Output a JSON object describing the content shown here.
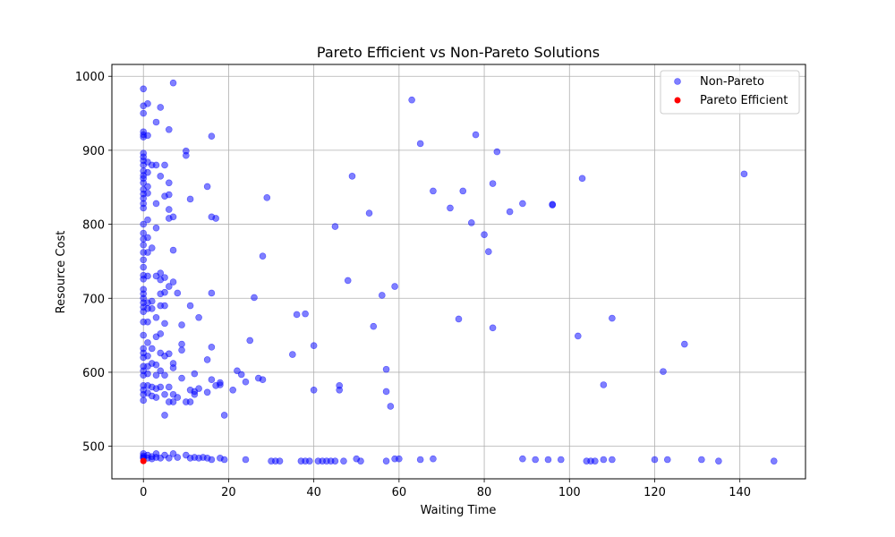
{
  "chart_data": {
    "type": "scatter",
    "title": "Pareto Efficient vs Non-Pareto Solutions",
    "xlabel": "Waiting Time",
    "ylabel": "Resource Cost",
    "xlim": [
      -7.4,
      155.4
    ],
    "ylim": [
      456,
      1016
    ],
    "xticks": [
      0,
      20,
      40,
      60,
      80,
      100,
      120,
      140
    ],
    "yticks": [
      500,
      600,
      700,
      800,
      900,
      1000
    ],
    "grid": true,
    "legend_position": "top-right",
    "series": [
      {
        "name": "Non-Pareto",
        "color": "#0000ff",
        "points": [
          [
            0,
            983
          ],
          [
            0,
            960
          ],
          [
            0,
            950
          ],
          [
            0,
            925
          ],
          [
            0,
            921
          ],
          [
            0,
            918
          ],
          [
            0,
            896
          ],
          [
            0,
            891
          ],
          [
            0,
            886
          ],
          [
            0,
            880
          ],
          [
            0,
            872
          ],
          [
            0,
            866
          ],
          [
            0,
            862
          ],
          [
            0,
            856
          ],
          [
            0,
            847
          ],
          [
            0,
            841
          ],
          [
            0,
            835
          ],
          [
            0,
            828
          ],
          [
            0,
            822
          ],
          [
            0,
            800
          ],
          [
            0,
            788
          ],
          [
            0,
            780
          ],
          [
            0,
            772
          ],
          [
            0,
            762
          ],
          [
            0,
            752
          ],
          [
            0,
            742
          ],
          [
            0,
            731
          ],
          [
            0,
            726
          ],
          [
            0,
            712
          ],
          [
            0,
            706
          ],
          [
            0,
            700
          ],
          [
            0,
            694
          ],
          [
            0,
            688
          ],
          [
            0,
            682
          ],
          [
            0,
            668
          ],
          [
            0,
            650
          ],
          [
            0,
            632
          ],
          [
            0,
            626
          ],
          [
            0,
            620
          ],
          [
            0,
            608
          ],
          [
            0,
            602
          ],
          [
            0,
            596
          ],
          [
            0,
            582
          ],
          [
            0,
            576
          ],
          [
            0,
            570
          ],
          [
            0,
            562
          ],
          [
            1,
            963
          ],
          [
            1,
            920
          ],
          [
            1,
            884
          ],
          [
            1,
            870
          ],
          [
            1,
            851
          ],
          [
            1,
            842
          ],
          [
            1,
            806
          ],
          [
            1,
            782
          ],
          [
            1,
            762
          ],
          [
            1,
            730
          ],
          [
            1,
            694
          ],
          [
            1,
            686
          ],
          [
            1,
            668
          ],
          [
            1,
            640
          ],
          [
            1,
            622
          ],
          [
            1,
            608
          ],
          [
            1,
            598
          ],
          [
            1,
            582
          ],
          [
            1,
            572
          ],
          [
            2,
            880
          ],
          [
            2,
            768
          ],
          [
            2,
            696
          ],
          [
            2,
            686
          ],
          [
            2,
            632
          ],
          [
            2,
            612
          ],
          [
            2,
            580
          ],
          [
            2,
            568
          ],
          [
            3,
            938
          ],
          [
            3,
            880
          ],
          [
            3,
            828
          ],
          [
            3,
            795
          ],
          [
            3,
            730
          ],
          [
            3,
            674
          ],
          [
            3,
            648
          ],
          [
            3,
            610
          ],
          [
            3,
            596
          ],
          [
            3,
            578
          ],
          [
            3,
            566
          ],
          [
            4,
            958
          ],
          [
            4,
            865
          ],
          [
            4,
            734
          ],
          [
            4,
            725
          ],
          [
            4,
            706
          ],
          [
            4,
            690
          ],
          [
            4,
            652
          ],
          [
            4,
            626
          ],
          [
            4,
            602
          ],
          [
            4,
            580
          ],
          [
            5,
            880
          ],
          [
            5,
            838
          ],
          [
            5,
            728
          ],
          [
            5,
            708
          ],
          [
            5,
            690
          ],
          [
            5,
            666
          ],
          [
            5,
            622
          ],
          [
            5,
            596
          ],
          [
            5,
            570
          ],
          [
            5,
            542
          ],
          [
            6,
            928
          ],
          [
            6,
            856
          ],
          [
            6,
            840
          ],
          [
            6,
            820
          ],
          [
            6,
            808
          ],
          [
            6,
            716
          ],
          [
            6,
            625
          ],
          [
            6,
            580
          ],
          [
            6,
            560
          ],
          [
            7,
            991
          ],
          [
            7,
            810
          ],
          [
            7,
            765
          ],
          [
            7,
            722
          ],
          [
            7,
            612
          ],
          [
            7,
            606
          ],
          [
            7,
            570
          ],
          [
            7,
            560
          ],
          [
            8,
            707
          ],
          [
            8,
            566
          ],
          [
            9,
            664
          ],
          [
            9,
            638
          ],
          [
            9,
            630
          ],
          [
            9,
            592
          ],
          [
            10,
            899
          ],
          [
            10,
            893
          ],
          [
            10,
            560
          ],
          [
            11,
            834
          ],
          [
            11,
            690
          ],
          [
            11,
            576
          ],
          [
            11,
            560
          ],
          [
            12,
            598
          ],
          [
            12,
            574
          ],
          [
            12,
            570
          ],
          [
            13,
            674
          ],
          [
            13,
            578
          ],
          [
            15,
            851
          ],
          [
            15,
            617
          ],
          [
            15,
            573
          ],
          [
            16,
            919
          ],
          [
            16,
            810
          ],
          [
            16,
            707
          ],
          [
            16,
            634
          ],
          [
            16,
            590
          ],
          [
            17,
            808
          ],
          [
            17,
            582
          ],
          [
            18,
            586
          ],
          [
            18,
            583
          ],
          [
            19,
            542
          ],
          [
            21,
            576
          ],
          [
            22,
            602
          ],
          [
            23,
            597
          ],
          [
            24,
            587
          ],
          [
            25,
            643
          ],
          [
            26,
            701
          ],
          [
            27,
            592
          ],
          [
            28,
            757
          ],
          [
            28,
            590
          ],
          [
            29,
            836
          ],
          [
            35,
            624
          ],
          [
            36,
            678
          ],
          [
            38,
            679
          ],
          [
            40,
            636
          ],
          [
            40,
            576
          ],
          [
            45,
            797
          ],
          [
            46,
            582
          ],
          [
            46,
            576
          ],
          [
            48,
            724
          ],
          [
            49,
            865
          ],
          [
            53,
            815
          ],
          [
            54,
            662
          ],
          [
            56,
            704
          ],
          [
            57,
            604
          ],
          [
            57,
            574
          ],
          [
            58,
            554
          ],
          [
            59,
            716
          ],
          [
            63,
            968
          ],
          [
            65,
            909
          ],
          [
            68,
            845
          ],
          [
            72,
            822
          ],
          [
            74,
            672
          ],
          [
            75,
            845
          ],
          [
            77,
            802
          ],
          [
            78,
            921
          ],
          [
            80,
            786
          ],
          [
            81,
            763
          ],
          [
            82,
            855
          ],
          [
            82,
            660
          ],
          [
            83,
            898
          ],
          [
            86,
            817
          ],
          [
            89,
            828
          ],
          [
            96,
            827
          ],
          [
            96,
            826
          ],
          [
            102,
            649
          ],
          [
            103,
            862
          ],
          [
            108,
            583
          ],
          [
            110,
            673
          ],
          [
            122,
            601
          ],
          [
            127,
            638
          ],
          [
            141,
            868
          ],
          [
            0,
            490
          ],
          [
            0,
            487
          ],
          [
            0,
            485
          ],
          [
            0,
            484
          ],
          [
            1,
            488
          ],
          [
            1,
            484
          ],
          [
            2,
            486
          ],
          [
            2,
            483
          ],
          [
            3,
            490
          ],
          [
            3,
            485
          ],
          [
            4,
            484
          ],
          [
            5,
            488
          ],
          [
            6,
            484
          ],
          [
            7,
            490
          ],
          [
            8,
            485
          ],
          [
            10,
            488
          ],
          [
            11,
            484
          ],
          [
            12,
            485
          ],
          [
            13,
            484
          ],
          [
            14,
            485
          ],
          [
            15,
            484
          ],
          [
            16,
            482
          ],
          [
            18,
            484
          ],
          [
            19,
            482
          ],
          [
            24,
            482
          ],
          [
            30,
            480
          ],
          [
            31,
            480
          ],
          [
            32,
            480
          ],
          [
            37,
            480
          ],
          [
            38,
            480
          ],
          [
            39,
            480
          ],
          [
            41,
            480
          ],
          [
            42,
            480
          ],
          [
            43,
            480
          ],
          [
            44,
            480
          ],
          [
            45,
            480
          ],
          [
            47,
            480
          ],
          [
            50,
            483
          ],
          [
            51,
            480
          ],
          [
            57,
            480
          ],
          [
            59,
            483
          ],
          [
            60,
            483
          ],
          [
            65,
            482
          ],
          [
            68,
            483
          ],
          [
            89,
            483
          ],
          [
            92,
            482
          ],
          [
            95,
            482
          ],
          [
            98,
            482
          ],
          [
            104,
            480
          ],
          [
            105,
            480
          ],
          [
            106,
            480
          ],
          [
            108,
            482
          ],
          [
            110,
            482
          ],
          [
            120,
            482
          ],
          [
            123,
            482
          ],
          [
            131,
            482
          ],
          [
            135,
            480
          ],
          [
            148,
            480
          ]
        ]
      },
      {
        "name": "Pareto Efficient",
        "color": "#ff0000",
        "points": [
          [
            0,
            480
          ]
        ]
      }
    ]
  }
}
